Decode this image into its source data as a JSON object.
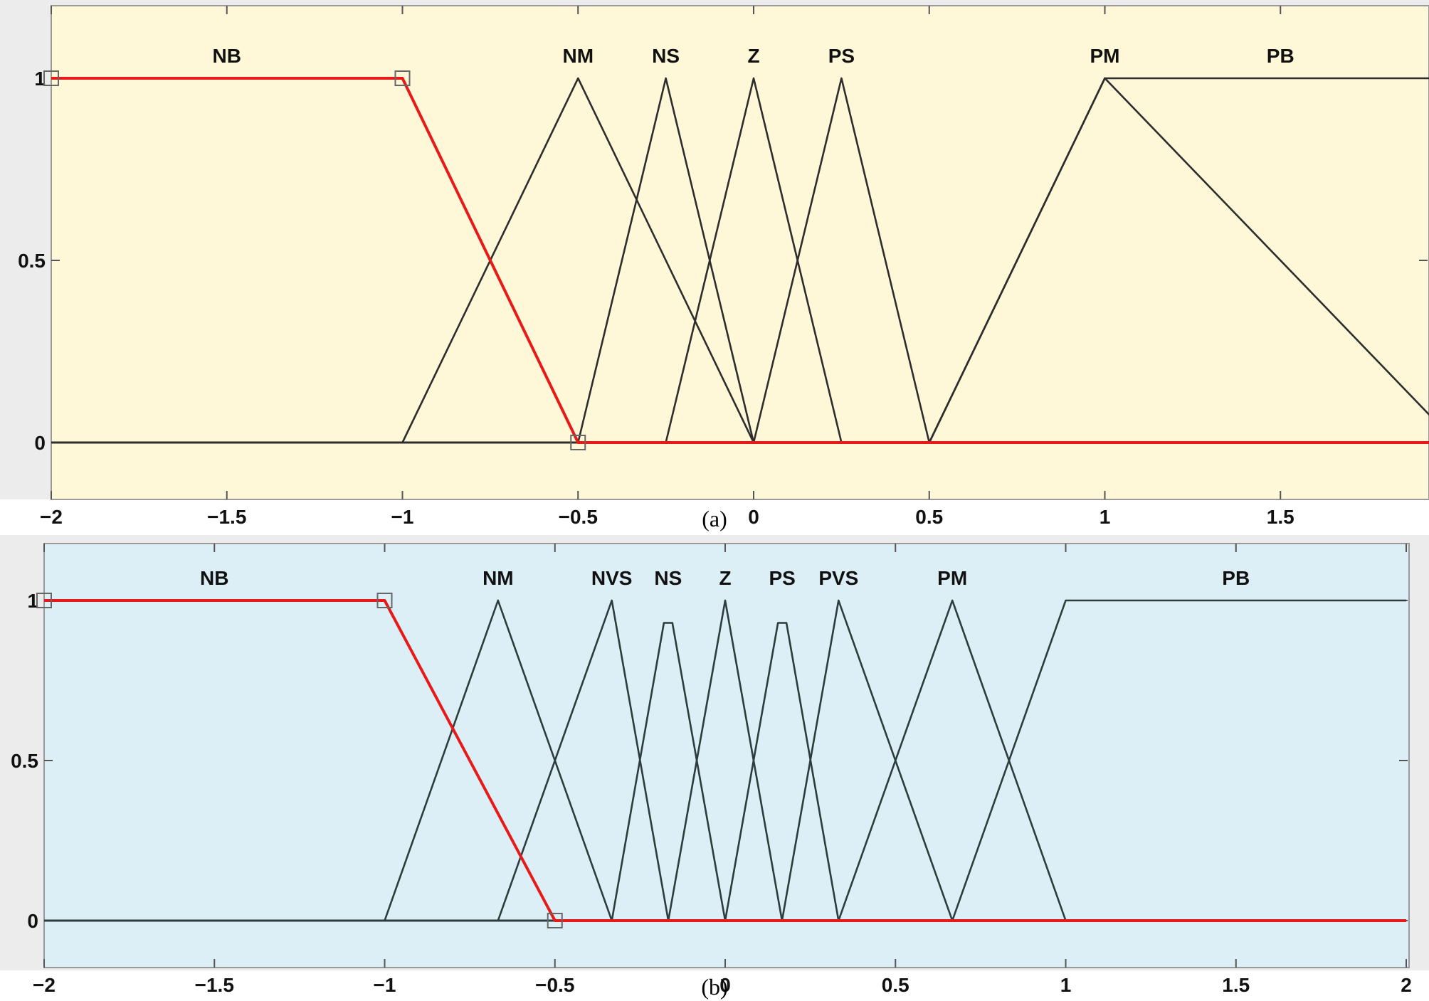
{
  "chart_data": [
    {
      "type": "line",
      "caption": "(a)",
      "colors": {
        "background": "#fef7d8",
        "curve": "#2d2d2d",
        "selected": "#e81919",
        "frame": "#9a9a9a",
        "outer": "#ececec"
      },
      "xlim": [
        -2,
        2
      ],
      "ylim": [
        0,
        1
      ],
      "xticks": [
        -2,
        -1.5,
        -1,
        -0.5,
        0,
        0.5,
        1,
        1.5
      ],
      "xtick_labels": [
        "−2",
        "−1.5",
        "−1",
        "−0.5",
        "0",
        "0.5",
        "1",
        "1.5"
      ],
      "yticks": [
        0,
        0.5,
        1
      ],
      "ytick_labels": [
        "0",
        "0.5",
        "1"
      ],
      "selected_series": "NB",
      "series": [
        {
          "name": "NB",
          "x": [
            -2,
            -1,
            -0.5,
            2
          ],
          "y": [
            1,
            1,
            0,
            0
          ]
        },
        {
          "name": "NM",
          "x": [
            -2,
            -1,
            -0.5,
            0,
            2
          ],
          "y": [
            0,
            0,
            1,
            0,
            0
          ]
        },
        {
          "name": "NS",
          "x": [
            -2,
            -0.5,
            -0.25,
            0,
            2
          ],
          "y": [
            0,
            0,
            1,
            0,
            0
          ]
        },
        {
          "name": "Z",
          "x": [
            -2,
            -0.25,
            0,
            0.25,
            2
          ],
          "y": [
            0,
            0,
            1,
            0,
            0
          ]
        },
        {
          "name": "PS",
          "x": [
            -2,
            0,
            0.25,
            0.5,
            2
          ],
          "y": [
            0,
            0,
            1,
            0,
            0
          ]
        },
        {
          "name": "PM",
          "x": [
            -2,
            0.5,
            1,
            2
          ],
          "y": [
            0,
            0,
            1,
            0
          ]
        },
        {
          "name": "PB",
          "x": [
            -2,
            0.5,
            1,
            2
          ],
          "y": [
            0,
            0,
            1,
            1
          ]
        }
      ]
    },
    {
      "type": "line",
      "caption": "(b)",
      "colors": {
        "background": "#dceff6",
        "curve": "#2d3d3d",
        "selected": "#e81919",
        "frame": "#9a9a9a",
        "outer": "#ececec"
      },
      "xlim": [
        -2,
        2
      ],
      "ylim": [
        0,
        1
      ],
      "xticks": [
        -2,
        -1.5,
        -1,
        -0.5,
        0,
        0.5,
        1,
        1.5,
        2
      ],
      "xtick_labels": [
        "−2",
        "−1.5",
        "−1",
        "−0.5",
        "0",
        "0.5",
        "1",
        "1.5",
        "2"
      ],
      "yticks": [
        0,
        0.5,
        1
      ],
      "ytick_labels": [
        "0",
        "0.5",
        "1"
      ],
      "selected_series": "NB",
      "series": [
        {
          "name": "NB",
          "x": [
            -2,
            -1,
            -0.5,
            2
          ],
          "y": [
            1,
            1,
            0,
            0
          ]
        },
        {
          "name": "NM",
          "x": [
            -2,
            -1,
            -0.667,
            -0.333,
            2
          ],
          "y": [
            0,
            0,
            1,
            0,
            0
          ]
        },
        {
          "name": "NVS",
          "x": [
            -2,
            -0.667,
            -0.333,
            -0.167,
            2
          ],
          "y": [
            0,
            0,
            1,
            0,
            0
          ]
        },
        {
          "name": "NS",
          "x": [
            -2,
            -0.333,
            -0.18,
            -0.155,
            0,
            2
          ],
          "y": [
            0,
            0,
            0.93,
            0.93,
            0,
            0
          ]
        },
        {
          "name": "Z",
          "x": [
            -2,
            -0.167,
            0,
            0.167,
            2
          ],
          "y": [
            0,
            0,
            1,
            0,
            0
          ]
        },
        {
          "name": "PS",
          "x": [
            -2,
            0,
            0.155,
            0.18,
            0.333,
            2
          ],
          "y": [
            0,
            0,
            0.93,
            0.93,
            0,
            0
          ]
        },
        {
          "name": "PVS",
          "x": [
            -2,
            0.167,
            0.333,
            0.667,
            2
          ],
          "y": [
            0,
            0,
            1,
            0,
            0
          ]
        },
        {
          "name": "PM",
          "x": [
            -2,
            0.333,
            0.667,
            1,
            2
          ],
          "y": [
            0,
            0,
            1,
            0,
            0
          ]
        },
        {
          "name": "PB",
          "x": [
            -2,
            0.667,
            1,
            2
          ],
          "y": [
            0,
            0,
            1,
            1
          ]
        }
      ]
    }
  ]
}
